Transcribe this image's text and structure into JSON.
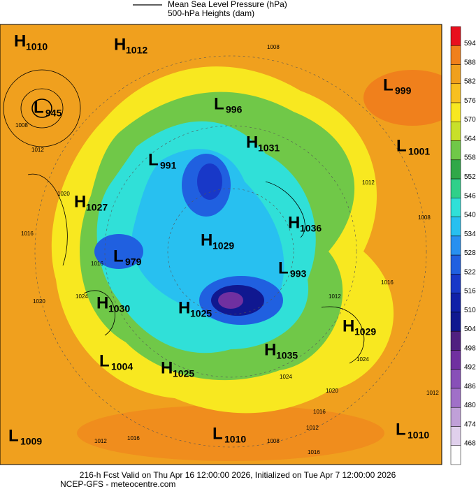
{
  "legend": {
    "items": [
      "Mean Sea Level Pressure (hPa)",
      "500-hPa Heights (dam)"
    ]
  },
  "centers": [
    {
      "letter": "H",
      "value": 1010
    },
    {
      "letter": "H",
      "value": 1012
    },
    {
      "letter": "L",
      "value": 945
    },
    {
      "letter": "L",
      "value": 999
    },
    {
      "letter": "L",
      "value": 996
    },
    {
      "letter": "H",
      "value": 1031
    },
    {
      "letter": "L",
      "value": 1001
    },
    {
      "letter": "L",
      "value": 991
    },
    {
      "letter": "H",
      "value": 1027
    },
    {
      "letter": "H",
      "value": 1036
    },
    {
      "letter": "H",
      "value": 1029
    },
    {
      "letter": "L",
      "value": 979
    },
    {
      "letter": "L",
      "value": 993
    },
    {
      "letter": "H",
      "value": 1030
    },
    {
      "letter": "H",
      "value": 1025
    },
    {
      "letter": "H",
      "value": 1029
    },
    {
      "letter": "H",
      "value": 1035
    },
    {
      "letter": "L",
      "value": 1004
    },
    {
      "letter": "H",
      "value": 1025
    },
    {
      "letter": "L",
      "value": 1009
    },
    {
      "letter": "L",
      "value": 1010
    },
    {
      "letter": "L",
      "value": 1010
    }
  ],
  "contour_labels": [
    1008,
    1012,
    1008,
    1020,
    1024,
    1016,
    1016,
    1020,
    1012,
    1016,
    1008,
    1012,
    1016,
    1024,
    1020,
    1016,
    1012,
    1012,
    1008,
    1012,
    1016,
    1024
  ],
  "colorbar": {
    "ticks": [
      594,
      588,
      582,
      576,
      570,
      564,
      558,
      552,
      546,
      540,
      534,
      528,
      522,
      516,
      510,
      504,
      498,
      492,
      486,
      480,
      474,
      468
    ],
    "colors": [
      "#e8101e",
      "#f0801c",
      "#f0a01e",
      "#f8c020",
      "#f8e820",
      "#c8e02a",
      "#70c848",
      "#30a848",
      "#30d08a",
      "#30e0d8",
      "#28c0f0",
      "#2890f0",
      "#2060e0",
      "#1838c8",
      "#1020a8",
      "#101890",
      "#502080",
      "#7030a0",
      "#8850b8",
      "#a070c8",
      "#c0a0d8",
      "#e0d0ec"
    ]
  },
  "footer": {
    "line1": "216-h Fcst Valid on Thu Apr 16 12:00:00 2026, Initialized on Tue Apr 7 12:00:00 2026",
    "line2": "NCEP-GFS  - meteocentre.com"
  }
}
